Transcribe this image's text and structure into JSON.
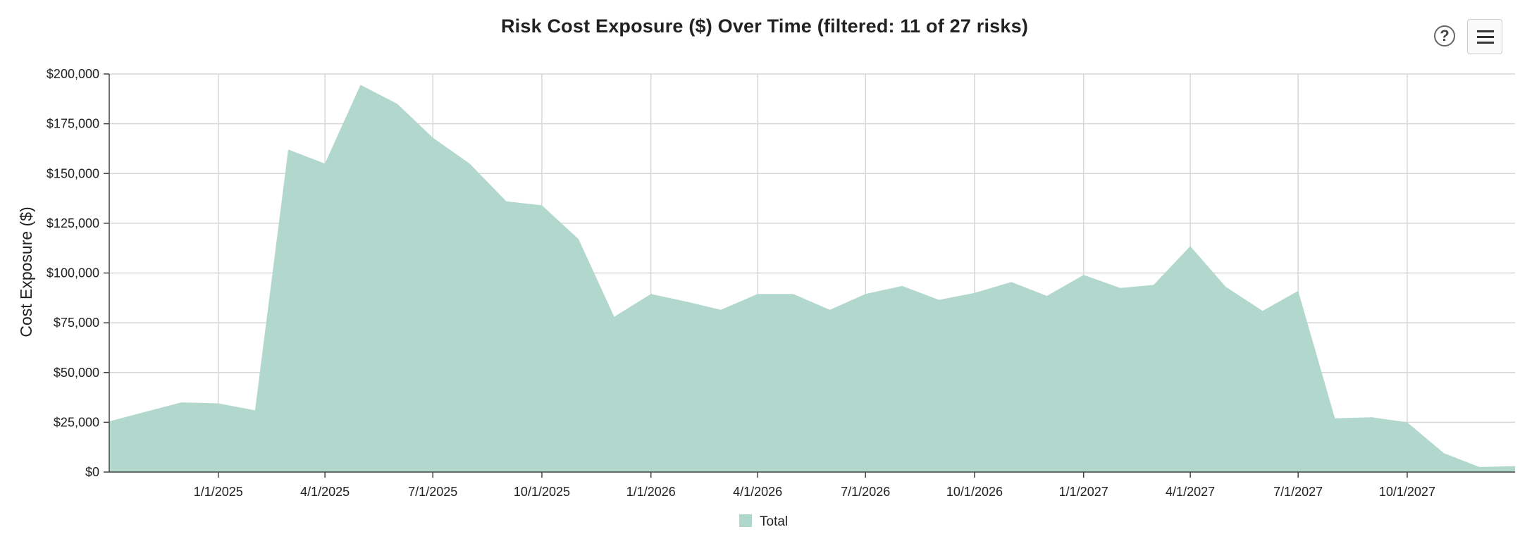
{
  "toolbar": {
    "help_label": "?"
  },
  "colors": {
    "area_fill": "#b0d7cb",
    "grid": "#d7d7d7",
    "axis": "#444444"
  },
  "chart_data": {
    "type": "area",
    "title": "Risk Cost Exposure ($) Over Time (filtered: 11 of 27 risks)",
    "ylabel": "Cost Exposure ($)",
    "xlabel": "",
    "ylim": [
      0,
      200000
    ],
    "y_ticks": [
      0,
      25000,
      50000,
      75000,
      100000,
      125000,
      150000,
      175000,
      200000
    ],
    "y_tick_labels": [
      "$0",
      "$25,000",
      "$50,000",
      "$75,000",
      "$100,000",
      "$125,000",
      "$150,000",
      "$175,000",
      "$200,000"
    ],
    "xlim": [
      "2024-10-01",
      "2027-12-31"
    ],
    "x_ticks": [
      "2025-01-01",
      "2025-04-01",
      "2025-07-01",
      "2025-10-01",
      "2026-01-01",
      "2026-04-01",
      "2026-07-01",
      "2026-10-01",
      "2027-01-01",
      "2027-04-01",
      "2027-07-01",
      "2027-10-01"
    ],
    "x_tick_labels": [
      "1/1/2025",
      "4/1/2025",
      "7/1/2025",
      "10/1/2025",
      "1/1/2026",
      "4/1/2026",
      "7/1/2026",
      "10/1/2026",
      "1/1/2027",
      "4/1/2027",
      "7/1/2027",
      "10/1/2027"
    ],
    "grid": true,
    "legend_position": "bottom-center",
    "series": [
      {
        "name": "Total",
        "x": [
          "2024-10-01",
          "2024-12-01",
          "2025-01-01",
          "2025-02-01",
          "2025-03-01",
          "2025-04-01",
          "2025-05-01",
          "2025-06-01",
          "2025-07-01",
          "2025-08-01",
          "2025-09-01",
          "2025-10-01",
          "2025-11-01",
          "2025-12-01",
          "2026-01-01",
          "2026-02-01",
          "2026-03-01",
          "2026-04-01",
          "2026-05-01",
          "2026-06-01",
          "2026-07-01",
          "2026-08-01",
          "2026-09-01",
          "2026-10-01",
          "2026-11-01",
          "2026-12-01",
          "2027-01-01",
          "2027-02-01",
          "2027-03-01",
          "2027-04-01",
          "2027-05-01",
          "2027-06-01",
          "2027-07-01",
          "2027-08-01",
          "2027-09-01",
          "2027-10-01",
          "2027-11-01",
          "2027-12-01",
          "2027-12-31"
        ],
        "y": [
          25500,
          35000,
          34500,
          31000,
          162000,
          155000,
          194500,
          185000,
          168000,
          155000,
          136000,
          134000,
          117000,
          78000,
          89500,
          85500,
          81500,
          89500,
          89500,
          81500,
          89500,
          93500,
          86500,
          90000,
          95500,
          88500,
          99000,
          92500,
          94000,
          113500,
          93000,
          81000,
          91000,
          27000,
          27500,
          25000,
          9500,
          2500,
          3000
        ]
      }
    ]
  }
}
